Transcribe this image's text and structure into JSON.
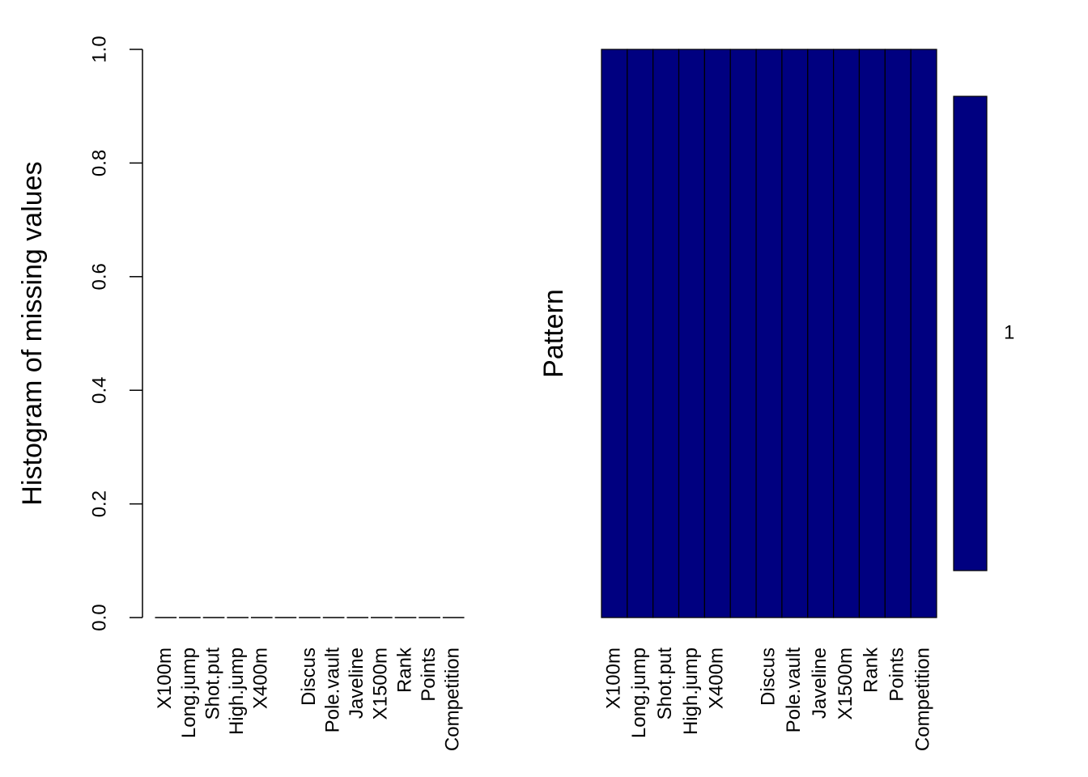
{
  "chart_data": [
    {
      "type": "bar",
      "y_label": "Histogram of missing values",
      "categories": [
        "X100m",
        "Long.jump",
        "Shot.put",
        "High.jump",
        "X400m",
        null,
        "Discus",
        "Pole.vault",
        "Javeline",
        "X1500m",
        "Rank",
        "Points",
        "Competition"
      ],
      "values": [
        0,
        0,
        0,
        0,
        0,
        0,
        0,
        0,
        0,
        0,
        0,
        0,
        0
      ],
      "color": "#000000",
      "ylim": [
        0,
        1
      ],
      "yticks": [
        {
          "value": 0,
          "label": "0.0"
        },
        0.2,
        0.4,
        0.6,
        0.8,
        {
          "value": 1,
          "label": "1.0"
        }
      ]
    },
    {
      "type": "pattern",
      "y_label": "Pattern",
      "categories": [
        "X100m",
        "Long.jump",
        "Shot.put",
        "High.jump",
        "X400m",
        null,
        "Discus",
        "Pole.vault",
        "Javeline",
        "X1500m",
        "Rank",
        "Points",
        "Competition"
      ],
      "pattern": [
        [
          0,
          0,
          0,
          0,
          0,
          0,
          0,
          0,
          0,
          0,
          0,
          0,
          0
        ]
      ],
      "color": "#000080",
      "frequencies": [
        1
      ]
    }
  ]
}
